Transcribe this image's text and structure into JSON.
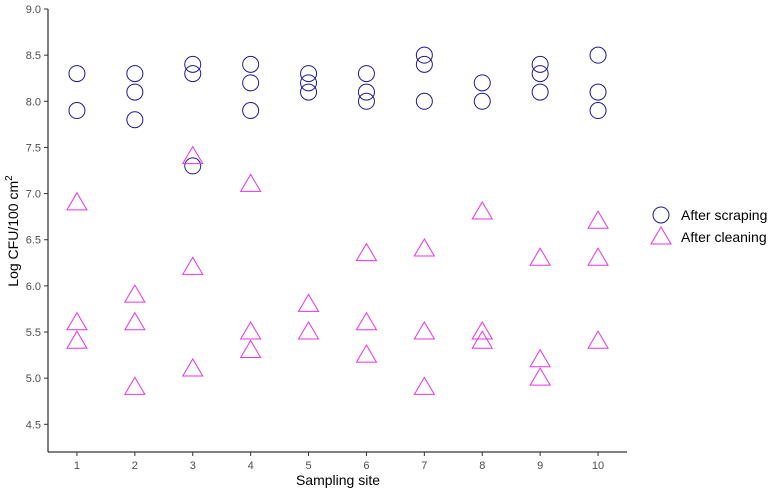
{
  "chart_data": {
    "type": "scatter",
    "xlabel": "Sampling site",
    "ylabel_main": "Log CFU/100 cm",
    "ylabel_superscript": "2",
    "x_ticks": [
      1,
      2,
      3,
      4,
      5,
      6,
      7,
      8,
      9,
      10
    ],
    "y_ticks": [
      "4.5",
      "5.0",
      "5.5",
      "6.0",
      "6.5",
      "7.0",
      "7.5",
      "8.0",
      "8.5",
      "9.0"
    ],
    "xlim": [
      0.5,
      10.5
    ],
    "ylim": [
      4.2,
      9.0
    ],
    "grid": false,
    "legend_position": "right",
    "series": [
      {
        "name": "After scraping",
        "marker": "circle",
        "color": "#1f1a8f",
        "points": [
          [
            1,
            8.3
          ],
          [
            1,
            7.9
          ],
          [
            2,
            8.3
          ],
          [
            2,
            8.1
          ],
          [
            2,
            7.8
          ],
          [
            3,
            8.4
          ],
          [
            3,
            8.3
          ],
          [
            3,
            7.3
          ],
          [
            4,
            8.4
          ],
          [
            4,
            8.2
          ],
          [
            4,
            7.9
          ],
          [
            5,
            8.3
          ],
          [
            5,
            8.2
          ],
          [
            5,
            8.1
          ],
          [
            6,
            8.3
          ],
          [
            6,
            8.1
          ],
          [
            6,
            8.0
          ],
          [
            7,
            8.5
          ],
          [
            7,
            8.4
          ],
          [
            7,
            8.0
          ],
          [
            8,
            8.2
          ],
          [
            8,
            8.0
          ],
          [
            9,
            8.4
          ],
          [
            9,
            8.3
          ],
          [
            9,
            8.1
          ],
          [
            10,
            8.5
          ],
          [
            10,
            8.1
          ],
          [
            10,
            7.9
          ]
        ]
      },
      {
        "name": "After cleaning",
        "marker": "triangle",
        "color": "#e633e6",
        "points": [
          [
            1,
            6.9
          ],
          [
            1,
            5.6
          ],
          [
            1,
            5.4
          ],
          [
            2,
            5.9
          ],
          [
            2,
            5.6
          ],
          [
            2,
            4.9
          ],
          [
            3,
            7.4
          ],
          [
            3,
            6.2
          ],
          [
            3,
            5.1
          ],
          [
            4,
            7.1
          ],
          [
            4,
            5.5
          ],
          [
            4,
            5.3
          ],
          [
            5,
            5.8
          ],
          [
            5,
            5.5
          ],
          [
            6,
            6.35
          ],
          [
            6,
            5.6
          ],
          [
            6,
            5.25
          ],
          [
            7,
            6.4
          ],
          [
            7,
            5.5
          ],
          [
            7,
            4.9
          ],
          [
            8,
            6.8
          ],
          [
            8,
            5.5
          ],
          [
            8,
            5.4
          ],
          [
            9,
            6.3
          ],
          [
            9,
            5.2
          ],
          [
            9,
            5.0
          ],
          [
            10,
            6.7
          ],
          [
            10,
            6.3
          ],
          [
            10,
            5.4
          ]
        ]
      }
    ]
  }
}
